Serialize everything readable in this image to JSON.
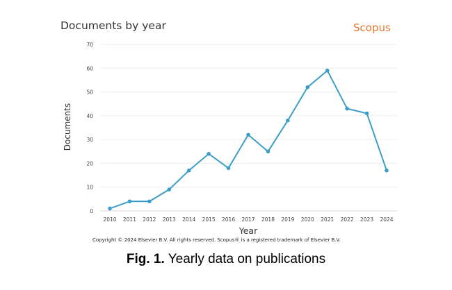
{
  "header": {
    "title": "Documents by year",
    "brand": "Scopus"
  },
  "footer": {
    "copyright": "Copyright © 2024 Elsevier B.V. All rights reserved. Scopus® is a registered trademark of Elsevier B.V."
  },
  "caption": {
    "label": "Fig. 1.",
    "text": "Yearly data on publications"
  },
  "chart_data": {
    "type": "line",
    "title": "Documents by year",
    "xlabel": "Year",
    "ylabel": "Documents",
    "x": [
      2010,
      2011,
      2012,
      2013,
      2014,
      2015,
      2016,
      2017,
      2018,
      2019,
      2020,
      2021,
      2022,
      2023,
      2024
    ],
    "series": [
      {
        "values": [
          1,
          4,
          4,
          9,
          17,
          24,
          18,
          32,
          25,
          38,
          52,
          59,
          43,
          41,
          17
        ]
      }
    ],
    "ylim": [
      0,
      70
    ],
    "yticks": [
      0,
      10,
      20,
      30,
      40,
      50,
      60,
      70
    ],
    "grid": true,
    "line_color": "#3c9ec8"
  }
}
